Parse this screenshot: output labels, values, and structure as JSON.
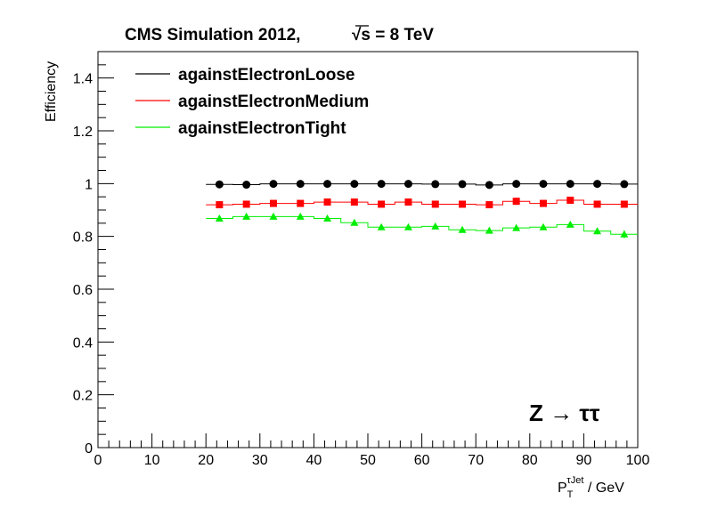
{
  "chart_data": {
    "type": "scatter",
    "title": "CMS Simulation 2012,",
    "title_energy": "√s = 8 TeV",
    "xlabel_main": "P",
    "xlabel_sub": "T",
    "xlabel_sup": "τJet",
    "xlabel_unit": " / GeV",
    "ylabel": "Efficiency",
    "xlim": [
      0,
      100
    ],
    "ylim": [
      0,
      1.5
    ],
    "x_ticks": [
      "0",
      "10",
      "20",
      "30",
      "40",
      "50",
      "60",
      "70",
      "80",
      "90",
      "100"
    ],
    "y_ticks": [
      "0",
      "0.2",
      "0.4",
      "0.6",
      "0.8",
      "1",
      "1.2",
      "1.4"
    ],
    "annotation": "Z → ττ",
    "legend_position": "top-left",
    "grid": false,
    "x": [
      22.5,
      27.5,
      32.5,
      37.5,
      42.5,
      47.5,
      52.5,
      57.5,
      62.5,
      67.5,
      72.5,
      77.5,
      82.5,
      87.5,
      92.5,
      97.5
    ],
    "bin_half_width": 2.5,
    "series": [
      {
        "name": "againstElectronLoose",
        "color": "#000000",
        "marker": "circle",
        "values": [
          0.997,
          0.996,
          0.999,
          0.999,
          0.999,
          0.999,
          0.999,
          0.999,
          0.998,
          0.998,
          0.995,
          0.999,
          0.999,
          0.999,
          0.999,
          0.998
        ]
      },
      {
        "name": "againstElectronMedium",
        "color": "#ff0000",
        "marker": "square",
        "values": [
          0.92,
          0.922,
          0.925,
          0.925,
          0.93,
          0.93,
          0.922,
          0.93,
          0.922,
          0.922,
          0.92,
          0.933,
          0.925,
          0.937,
          0.922,
          0.922
        ]
      },
      {
        "name": "againstElectronTight",
        "color": "#00ee00",
        "marker": "triangle",
        "values": [
          0.868,
          0.875,
          0.875,
          0.875,
          0.868,
          0.852,
          0.835,
          0.835,
          0.838,
          0.825,
          0.822,
          0.832,
          0.835,
          0.845,
          0.82,
          0.808
        ],
        "errors": [
          0.005,
          0.005,
          0.005,
          0.005,
          0.005,
          0.005,
          0.005,
          0.005,
          0.005,
          0.006,
          0.006,
          0.006,
          0.007,
          0.008,
          0.012,
          0.015
        ]
      }
    ]
  }
}
